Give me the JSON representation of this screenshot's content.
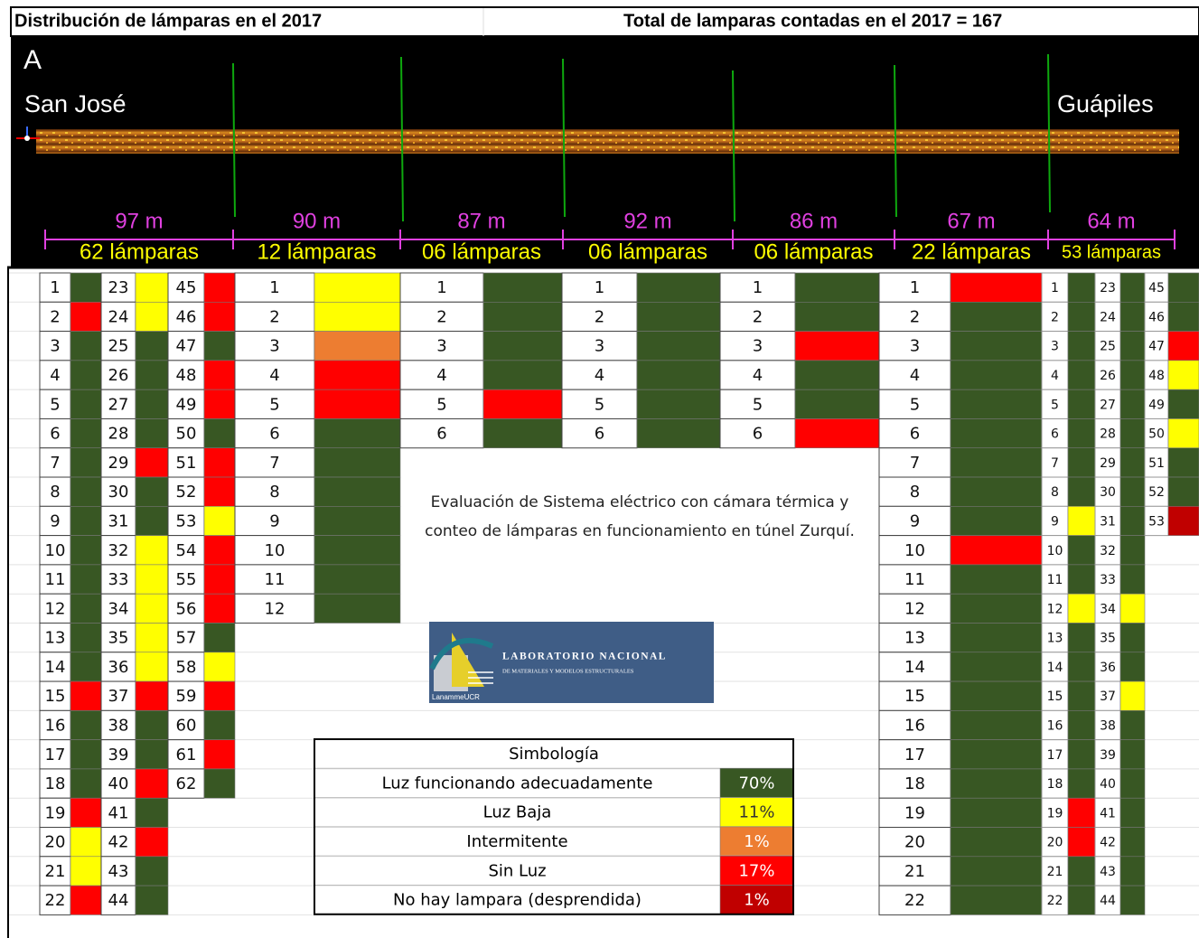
{
  "header": {
    "title": "Distribución de lámparas en el 2017",
    "total": "Total de lamparas contadas en el 2017 = 167"
  },
  "map": {
    "label": "A",
    "start": "San José",
    "end": "Guápiles"
  },
  "sections": [
    {
      "distance": "97 m",
      "lamps": "62 lámparas",
      "columns": [
        {
          "numbers": [
            1,
            2,
            3,
            4,
            5,
            6,
            7,
            8,
            9,
            10,
            11,
            12,
            13,
            14,
            15,
            16,
            17,
            18,
            19,
            20,
            21,
            22
          ],
          "colors": [
            "#385723",
            "#ff0000",
            "#385723",
            "#385723",
            "#385723",
            "#385723",
            "#385723",
            "#385723",
            "#385723",
            "#385723",
            "#385723",
            "#385723",
            "#385723",
            "#385723",
            "#ff0000",
            "#385723",
            "#385723",
            "#385723",
            "#ff0000",
            "#ffff00",
            "#ffff00",
            "#ff0000"
          ]
        },
        {
          "numbers": [
            23,
            24,
            25,
            26,
            27,
            28,
            29,
            30,
            31,
            32,
            33,
            34,
            35,
            36,
            37,
            38,
            39,
            40,
            41,
            42,
            43,
            44
          ],
          "colors": [
            "#ffff00",
            "#ffff00",
            "#385723",
            "#385723",
            "#385723",
            "#385723",
            "#ff0000",
            "#385723",
            "#385723",
            "#ffff00",
            "#ffff00",
            "#ffff00",
            "#ffff00",
            "#ffff00",
            "#ff0000",
            "#385723",
            "#385723",
            "#ff0000",
            "#385723",
            "#ff0000",
            "#385723",
            "#385723"
          ]
        },
        {
          "numbers": [
            45,
            46,
            47,
            48,
            49,
            50,
            51,
            52,
            53,
            54,
            55,
            56,
            57,
            58,
            59,
            60,
            61,
            62
          ],
          "colors": [
            "#ff0000",
            "#ff0000",
            "#385723",
            "#ff0000",
            "#ff0000",
            "#385723",
            "#ff0000",
            "#ff0000",
            "#ffff00",
            "#ff0000",
            "#ff0000",
            "#ff0000",
            "#385723",
            "#ffff00",
            "#ff0000",
            "#385723",
            "#ff0000",
            "#385723"
          ]
        }
      ]
    },
    {
      "distance": "90 m",
      "lamps": "12 lámparas",
      "columns": [
        {
          "numbers": [
            1,
            2,
            3,
            4,
            5,
            6,
            7,
            8,
            9,
            10,
            11,
            12
          ],
          "colors": [
            "#ffff00",
            "#ffff00",
            "#ed7d31",
            "#ff0000",
            "#ff0000",
            "#385723",
            "#385723",
            "#385723",
            "#385723",
            "#385723",
            "#385723",
            "#385723"
          ]
        }
      ]
    },
    {
      "distance": "87 m",
      "lamps": "06 lámparas",
      "columns": [
        {
          "numbers": [
            1,
            2,
            3,
            4,
            5,
            6
          ],
          "colors": [
            "#385723",
            "#385723",
            "#385723",
            "#385723",
            "#ff0000",
            "#385723"
          ]
        }
      ]
    },
    {
      "distance": "92 m",
      "lamps": "06 lámparas",
      "columns": [
        {
          "numbers": [
            1,
            2,
            3,
            4,
            5,
            6
          ],
          "colors": [
            "#385723",
            "#385723",
            "#385723",
            "#385723",
            "#385723",
            "#385723"
          ]
        }
      ]
    },
    {
      "distance": "86 m",
      "lamps": "06 lámparas",
      "columns": [
        {
          "numbers": [
            1,
            2,
            3,
            4,
            5,
            6
          ],
          "colors": [
            "#385723",
            "#385723",
            "#ff0000",
            "#385723",
            "#385723",
            "#ff0000"
          ]
        }
      ]
    },
    {
      "distance": "67 m",
      "lamps": "22 lámparas",
      "columns": [
        {
          "numbers": [
            1,
            2,
            3,
            4,
            5,
            6,
            7,
            8,
            9,
            10,
            11,
            12,
            13,
            14,
            15,
            16,
            17,
            18,
            19,
            20,
            21,
            22
          ],
          "colors": [
            "#ff0000",
            "#385723",
            "#385723",
            "#385723",
            "#385723",
            "#385723",
            "#385723",
            "#385723",
            "#385723",
            "#ff0000",
            "#385723",
            "#385723",
            "#385723",
            "#385723",
            "#385723",
            "#385723",
            "#385723",
            "#385723",
            "#385723",
            "#385723",
            "#385723",
            "#385723"
          ]
        }
      ]
    },
    {
      "distance": "64 m",
      "lamps": "53 lámparas",
      "columns": [
        {
          "numbers": [
            1,
            2,
            3,
            4,
            5,
            6,
            7,
            8,
            9,
            10,
            11,
            12,
            13,
            14,
            15,
            16,
            17,
            18,
            19,
            20,
            21,
            22
          ],
          "colors": [
            "#385723",
            "#385723",
            "#385723",
            "#385723",
            "#385723",
            "#385723",
            "#385723",
            "#385723",
            "#ffff00",
            "#385723",
            "#385723",
            "#ffff00",
            "#385723",
            "#385723",
            "#385723",
            "#385723",
            "#385723",
            "#385723",
            "#ff0000",
            "#ff0000",
            "#385723",
            "#385723"
          ]
        },
        {
          "numbers": [
            23,
            24,
            25,
            26,
            27,
            28,
            29,
            30,
            31,
            32,
            33,
            34,
            35,
            36,
            37,
            38,
            39,
            40,
            41,
            42,
            43,
            44
          ],
          "colors": [
            "#385723",
            "#385723",
            "#385723",
            "#385723",
            "#385723",
            "#385723",
            "#385723",
            "#385723",
            "#385723",
            "#385723",
            "#385723",
            "#ffff00",
            "#385723",
            "#385723",
            "#ffff00",
            "#385723",
            "#385723",
            "#385723",
            "#385723",
            "#385723",
            "#385723",
            "#385723"
          ]
        },
        {
          "numbers": [
            45,
            46,
            47,
            48,
            49,
            50,
            51,
            52,
            53
          ],
          "colors": [
            "#385723",
            "#385723",
            "#ff0000",
            "#ffff00",
            "#385723",
            "#ffff00",
            "#385723",
            "#385723",
            "#c00000"
          ]
        }
      ]
    }
  ],
  "description": "Evaluación de Sistema eléctrico con cámara térmica y conteo de lámparas en funcionamiento en túnel Zurquí.",
  "logo": {
    "name": "LABORATORIO NACIONAL",
    "subtitle": "DE MATERIALES Y MODELOS ESTRUCTURALES",
    "brand": "LanammeUCR"
  },
  "legend": {
    "title": "Simbología",
    "items": [
      {
        "label": "Luz funcionando adecuadamente",
        "value": "70%",
        "color": "#385723"
      },
      {
        "label": "Luz Baja",
        "value": "11%",
        "color": "#ffff00"
      },
      {
        "label": "Intermitente",
        "value": "1%",
        "color": "#ed7d31"
      },
      {
        "label": "Sin Luz",
        "value": "17%",
        "color": "#ff0000"
      },
      {
        "label": "No hay lampara (desprendida)",
        "value": "1%",
        "color": "#c00000"
      }
    ]
  }
}
